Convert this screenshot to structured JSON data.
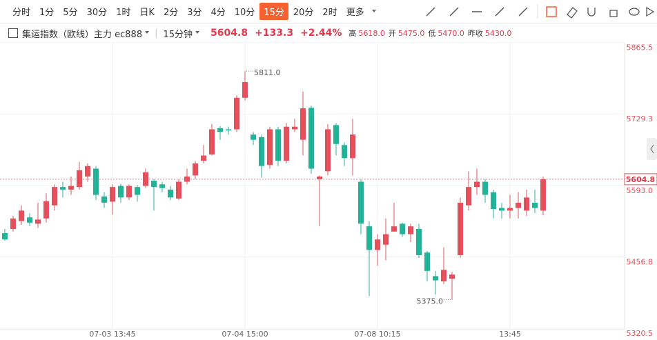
{
  "toolbar": {
    "intervals": [
      "分时",
      "1分",
      "5分",
      "30分",
      "1时",
      "日K",
      "2分",
      "3分",
      "4分",
      "10分",
      "15分",
      "20分",
      "2时",
      "更多"
    ],
    "active": 10
  },
  "header": {
    "symbol": "集运指数（欧线）主力 ec888",
    "period": "15分钟",
    "price": "5604.8",
    "change": "+133.3",
    "change_pct": "+2.44%",
    "stats": [
      {
        "label": "高",
        "value": "5618.0"
      },
      {
        "label": "开",
        "value": "5475.0"
      },
      {
        "label": "低",
        "value": "5470.0"
      },
      {
        "label": "昨收",
        "value": "5430.0"
      }
    ]
  },
  "chart_data": {
    "type": "candlestick",
    "categories": [
      null,
      null,
      null,
      null,
      null,
      null,
      null,
      null,
      null,
      null,
      null,
      null,
      null,
      "07-03 13:45",
      null,
      null,
      null,
      null,
      null,
      null,
      null,
      null,
      null,
      null,
      null,
      null,
      null,
      null,
      null,
      "07-04 15:00",
      null,
      null,
      null,
      null,
      null,
      null,
      null,
      null,
      null,
      null,
      null,
      null,
      null,
      null,
      null,
      "07-08 10:15",
      null,
      null,
      null,
      null,
      null,
      null,
      null,
      null,
      null,
      null,
      null,
      null,
      null,
      null,
      null,
      "13:45",
      null,
      null,
      null,
      null
    ],
    "open": [
      5502,
      5510,
      5525,
      5532,
      5520,
      5530,
      5555,
      5590,
      5585,
      5590,
      5610,
      5625,
      5572,
      5562,
      5592,
      5570,
      5590,
      5592,
      5602,
      5595,
      5585,
      5568,
      5600,
      5612,
      5640,
      5652,
      5702,
      5700,
      5700,
      5760,
      5690,
      5685,
      5632,
      5700,
      5640,
      5700,
      5680,
      5741,
      5605,
      5620,
      5708,
      5670,
      5645,
      5600,
      5515,
      5470,
      5480,
      5505,
      5520,
      5500,
      5510,
      5465,
      5420,
      5410,
      5415,
      5460,
      5555,
      5590,
      5600,
      5580,
      5550,
      5545,
      5550,
      5545,
      5560,
      5545
    ],
    "high": [
      5510,
      5535,
      5555,
      5540,
      5560,
      5578,
      5595,
      5600,
      5610,
      5638,
      5635,
      5630,
      5580,
      5595,
      5596,
      5595,
      5594,
      5625,
      5605,
      5600,
      5592,
      5605,
      5625,
      5640,
      5670,
      5710,
      5706,
      5705,
      5765,
      5811,
      5695,
      5690,
      5705,
      5705,
      5712,
      5720,
      5772,
      5745,
      5612,
      5710,
      5712,
      5675,
      5720,
      5605,
      5525,
      5500,
      5530,
      5560,
      5522,
      5520,
      5520,
      5468,
      5430,
      5475,
      5428,
      5570,
      5620,
      5625,
      5605,
      5585,
      5560,
      5575,
      5580,
      5585,
      5585,
      5610
    ],
    "low": [
      5488,
      5505,
      5518,
      5515,
      5512,
      5522,
      5545,
      5570,
      5575,
      5585,
      5600,
      5565,
      5550,
      5537,
      5560,
      5565,
      5562,
      5588,
      5545,
      5580,
      5565,
      5565,
      5595,
      5605,
      5635,
      5650,
      5680,
      5690,
      5695,
      5755,
      5670,
      5608,
      5625,
      5630,
      5635,
      5695,
      5650,
      5615,
      5515,
      5612,
      5650,
      5630,
      5612,
      5500,
      5382,
      5440,
      5450,
      5505,
      5495,
      5485,
      5455,
      5410,
      5385,
      5405,
      5375,
      5455,
      5545,
      5575,
      5560,
      5530,
      5530,
      5530,
      5530,
      5535,
      5540,
      5536
    ],
    "close": [
      5490,
      5530,
      5545,
      5522,
      5528,
      5563,
      5590,
      5585,
      5592,
      5622,
      5630,
      5575,
      5560,
      5590,
      5570,
      5592,
      5575,
      5618,
      5590,
      5588,
      5570,
      5600,
      5610,
      5635,
      5650,
      5700,
      5695,
      5698,
      5760,
      5790,
      5680,
      5630,
      5700,
      5640,
      5705,
      5705,
      5740,
      5625,
      5610,
      5700,
      5672,
      5645,
      5690,
      5520,
      5470,
      5490,
      5500,
      5515,
      5500,
      5515,
      5460,
      5430,
      5412,
      5432,
      5423,
      5560,
      5590,
      5600,
      5575,
      5548,
      5545,
      5550,
      5560,
      5570,
      5550,
      5604.8
    ],
    "up_color": "#e5505c",
    "down_color": "#23b396",
    "ylim": [
      5318,
      5865
    ],
    "yticks": [
      5865.5,
      5729.3,
      {
        "value": 5593,
        "label": "5593.0"
      },
      5456.8,
      5320.5
    ],
    "grid": true,
    "high_mark": {
      "value": 5811,
      "label": "5811.0"
    },
    "low_mark": {
      "value": 5375,
      "label": "5375.0"
    },
    "last": 5604.8
  }
}
